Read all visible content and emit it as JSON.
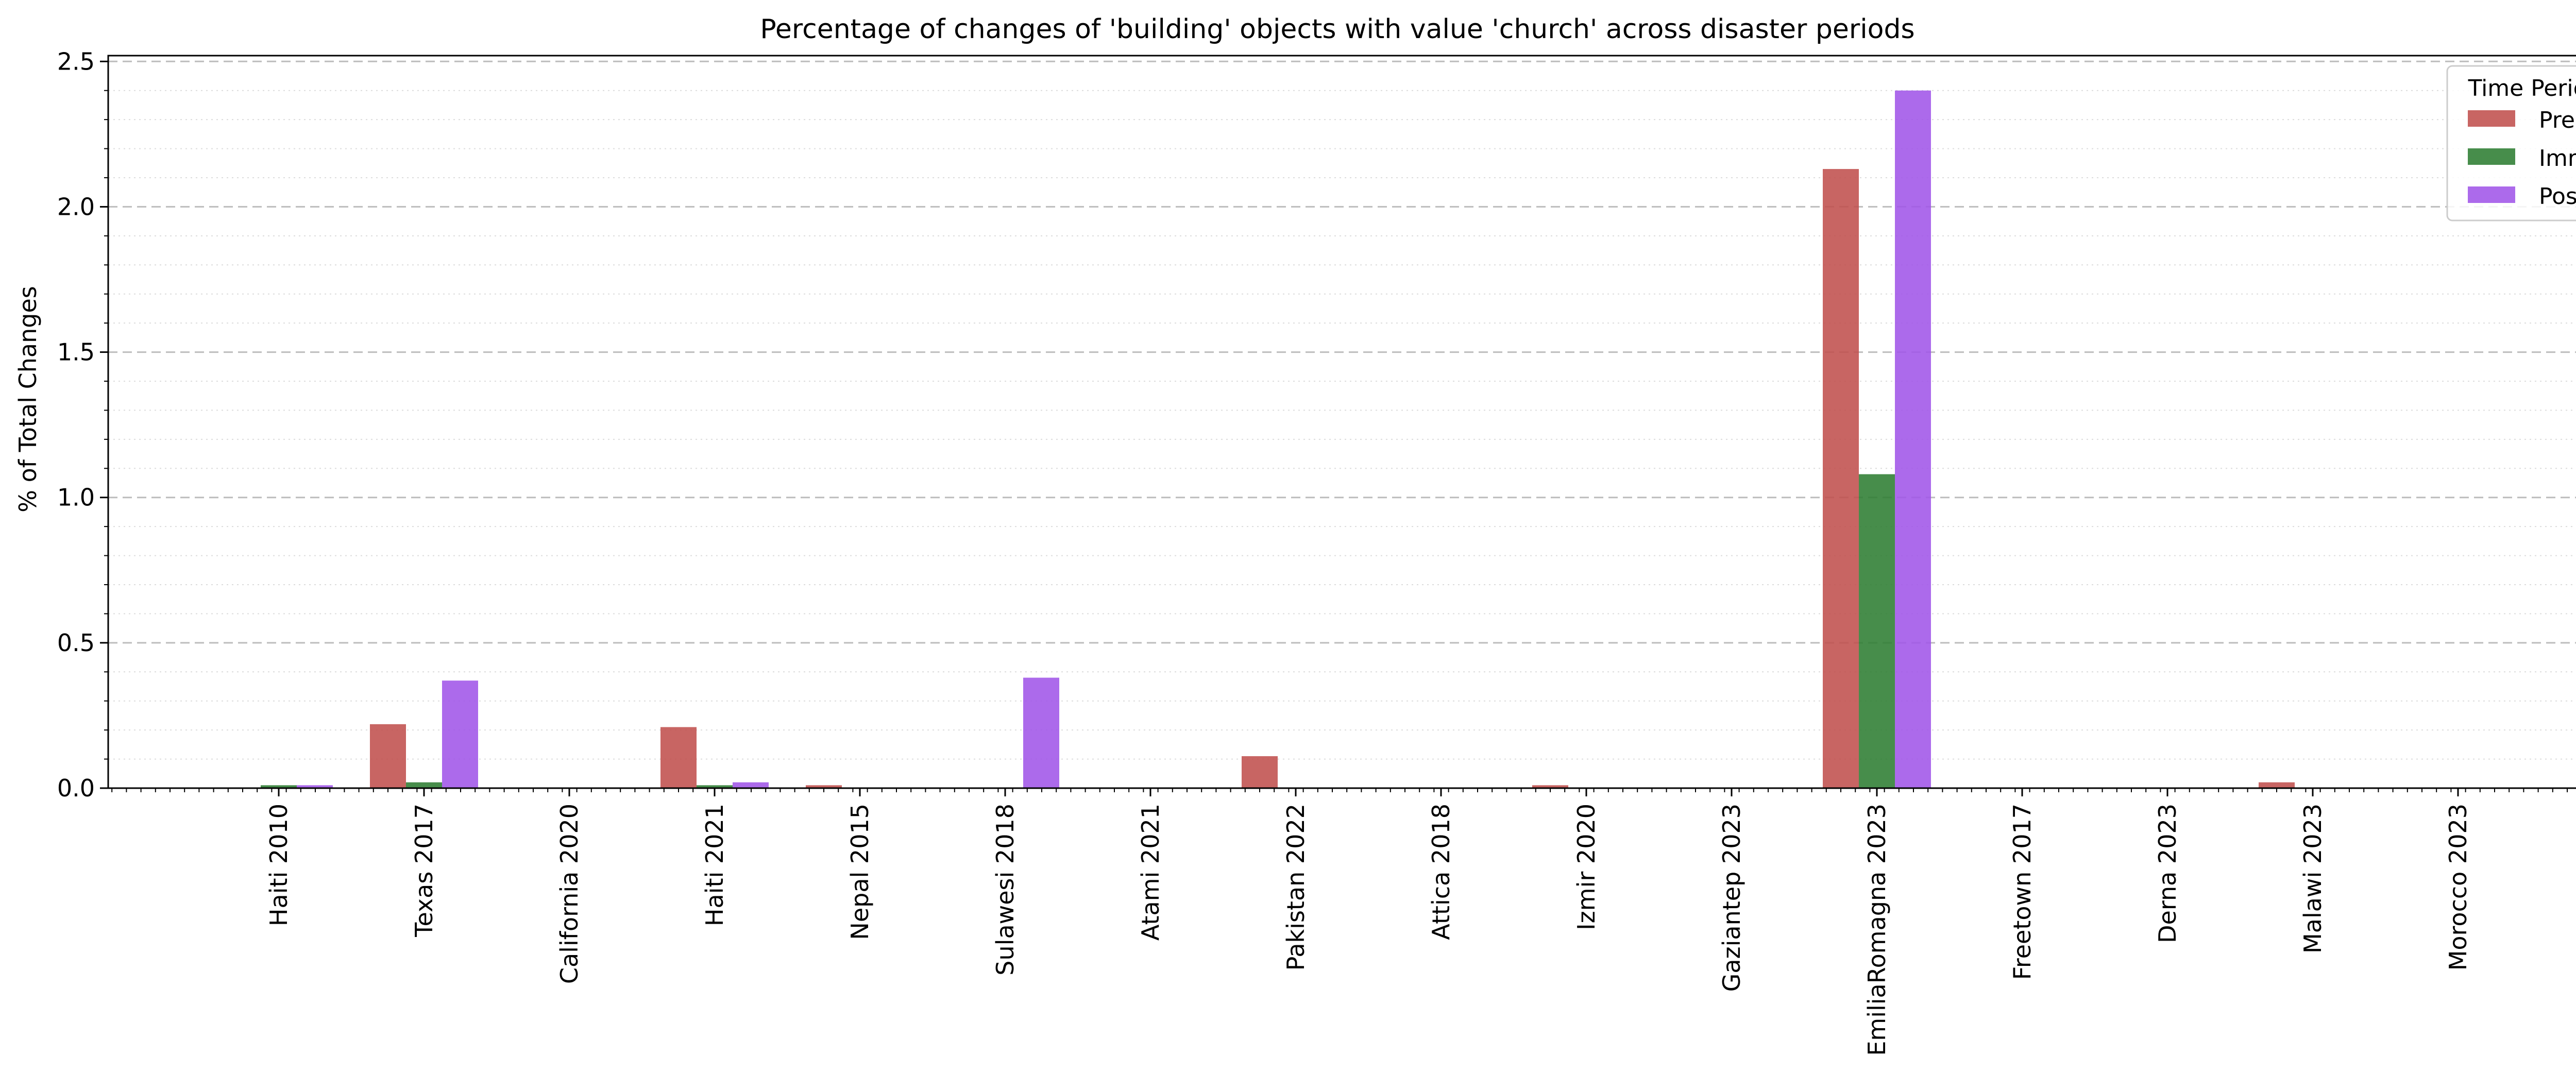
{
  "chart_data": {
    "type": "bar",
    "title": "Percentage of changes of 'building' objects with value 'church' across disaster periods",
    "xlabel": "",
    "ylabel": "% of Total Changes",
    "ylim": [
      0,
      2.52
    ],
    "yticks": [
      "0.0",
      "0.5",
      "1.0",
      "1.5",
      "2.0",
      "2.5"
    ],
    "categories": [
      "Haiti 2010",
      "Texas 2017",
      "California 2020",
      "Haiti 2021",
      "Nepal 2015",
      "Sulawesi 2018",
      "Atami 2021",
      "Pakistan 2022",
      "Attica 2018",
      "Izmir 2020",
      "Gaziantep 2023",
      "EmiliaRomagna 2023",
      "Freetown 2017",
      "Derna 2023",
      "Malawi 2023",
      "Morocco 2023"
    ],
    "series": [
      {
        "name": "Pre",
        "color": "#c0504d",
        "values": [
          0.0,
          0.22,
          0.0,
          0.21,
          0.01,
          0.0,
          0.0,
          0.11,
          0.0,
          0.01,
          0.0,
          2.13,
          0.0,
          0.0,
          0.02,
          0.0
        ]
      },
      {
        "name": "Imm",
        "color": "#2e7d32",
        "values": [
          0.01,
          0.02,
          0.0,
          0.01,
          0.0,
          0.0,
          0.0,
          0.0,
          0.0,
          0.0,
          0.0,
          1.08,
          0.0,
          0.0,
          0.0,
          0.0
        ]
      },
      {
        "name": "Post",
        "color": "#a155e8",
        "values": [
          0.01,
          0.37,
          0.0,
          0.02,
          0.0,
          0.38,
          0.0,
          0.0,
          0.0,
          0.0,
          0.0,
          2.4,
          0.0,
          0.0,
          0.0,
          0.0
        ]
      }
    ],
    "legend": {
      "title": "Time Period",
      "placement": "top-right"
    },
    "grid": {
      "major_y": "dashed",
      "minor_y": "dotted"
    }
  }
}
